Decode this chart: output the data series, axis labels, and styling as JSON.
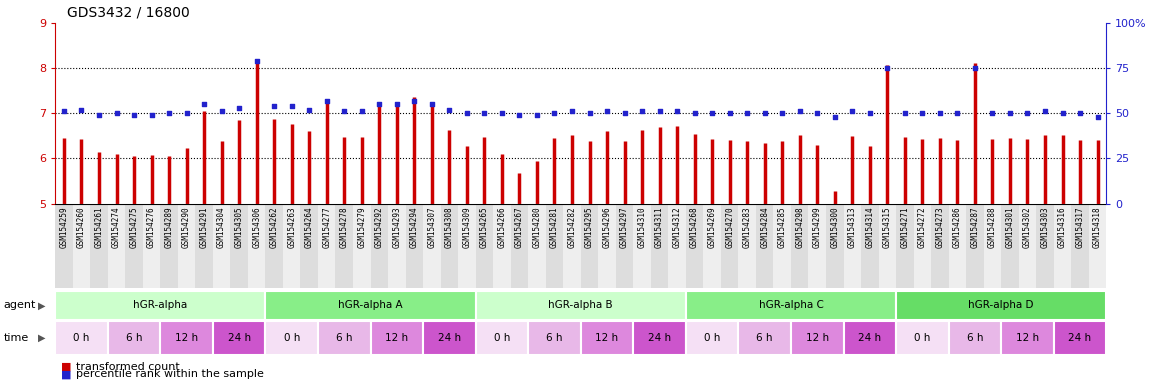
{
  "title": "GDS3432 / 16800",
  "ylim_left": [
    5,
    9
  ],
  "ylim_right": [
    0,
    100
  ],
  "yticks_left": [
    5,
    6,
    7,
    8,
    9
  ],
  "yticks_right": [
    0,
    25,
    50,
    75,
    100
  ],
  "bar_color": "#CC0000",
  "dot_color": "#2222CC",
  "sample_ids": [
    "GSM154259",
    "GSM154260",
    "GSM154261",
    "GSM154274",
    "GSM154275",
    "GSM154276",
    "GSM154289",
    "GSM154290",
    "GSM154291",
    "GSM154304",
    "GSM154305",
    "GSM154306",
    "GSM154262",
    "GSM154263",
    "GSM154264",
    "GSM154277",
    "GSM154278",
    "GSM154279",
    "GSM154292",
    "GSM154293",
    "GSM154294",
    "GSM154307",
    "GSM154308",
    "GSM154309",
    "GSM154265",
    "GSM154266",
    "GSM154267",
    "GSM154280",
    "GSM154281",
    "GSM154282",
    "GSM154295",
    "GSM154296",
    "GSM154297",
    "GSM154310",
    "GSM154311",
    "GSM154312",
    "GSM154268",
    "GSM154269",
    "GSM154270",
    "GSM154283",
    "GSM154284",
    "GSM154285",
    "GSM154298",
    "GSM154299",
    "GSM154300",
    "GSM154313",
    "GSM154314",
    "GSM154315",
    "GSM154271",
    "GSM154272",
    "GSM154273",
    "GSM154286",
    "GSM154287",
    "GSM154288",
    "GSM154301",
    "GSM154302",
    "GSM154303",
    "GSM154316",
    "GSM154317",
    "GSM154318"
  ],
  "bar_values": [
    6.45,
    6.42,
    6.15,
    6.1,
    6.05,
    6.07,
    6.05,
    6.23,
    7.05,
    6.38,
    6.85,
    8.18,
    6.88,
    6.76,
    6.6,
    7.22,
    6.48,
    6.48,
    7.18,
    7.22,
    7.35,
    7.25,
    6.62,
    6.28,
    6.48,
    6.1,
    5.68,
    5.95,
    6.45,
    6.52,
    6.38,
    6.6,
    6.38,
    6.62,
    6.7,
    6.72,
    6.55,
    6.42,
    6.4,
    6.38,
    6.35,
    6.38,
    6.52,
    6.3,
    5.28,
    6.5,
    6.28,
    8.08,
    6.48,
    6.42,
    6.45,
    6.4,
    8.12,
    6.42,
    6.45,
    6.42,
    6.52,
    6.52,
    6.4,
    6.4
  ],
  "percentile_values": [
    51,
    52,
    49,
    50,
    49,
    49,
    50,
    50,
    55,
    51,
    53,
    79,
    54,
    54,
    52,
    57,
    51,
    51,
    55,
    55,
    57,
    55,
    52,
    50,
    50,
    50,
    49,
    49,
    50,
    51,
    50,
    51,
    50,
    51,
    51,
    51,
    50,
    50,
    50,
    50,
    50,
    50,
    51,
    50,
    48,
    51,
    50,
    75,
    50,
    50,
    50,
    50,
    75,
    50,
    50,
    50,
    51,
    50,
    50,
    48
  ],
  "agents": [
    {
      "label": "hGR-alpha",
      "start": 0,
      "end": 12,
      "color": "#ccffcc"
    },
    {
      "label": "hGR-alpha A",
      "start": 12,
      "end": 24,
      "color": "#88ee88"
    },
    {
      "label": "hGR-alpha B",
      "start": 24,
      "end": 36,
      "color": "#ccffcc"
    },
    {
      "label": "hGR-alpha C",
      "start": 36,
      "end": 48,
      "color": "#88ee88"
    },
    {
      "label": "hGR-alpha D",
      "start": 48,
      "end": 60,
      "color": "#66dd66"
    }
  ],
  "time_groups": [
    {
      "label": "0 h",
      "color": "#f5e0f5"
    },
    {
      "label": "6 h",
      "color": "#e8b8e8"
    },
    {
      "label": "12 h",
      "color": "#dd88dd"
    },
    {
      "label": "24 h",
      "color": "#cc55cc"
    }
  ],
  "legend_bar_label": "transformed count",
  "legend_dot_label": "percentile rank within the sample",
  "title_fontsize": 10,
  "axis_label_color_left": "#CC0000",
  "axis_label_color_right": "#2222CC"
}
